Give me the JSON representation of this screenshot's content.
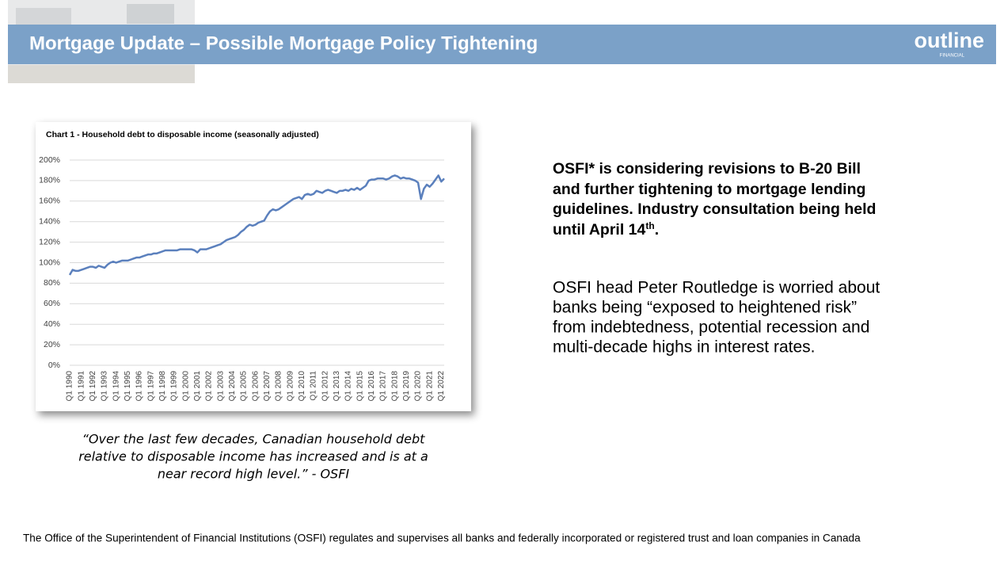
{
  "header": {
    "title": "Mortgage Update – Possible Mortgage Policy Tightening",
    "logo": "outline",
    "logo_sub": "FINANCIAL"
  },
  "chart_data": {
    "type": "line",
    "title": "Chart 1 - Household debt to disposable income (seasonally adjusted)",
    "categories": [
      "Q1 1990",
      null,
      null,
      null,
      "Q1 1991",
      null,
      null,
      null,
      "Q1 1992",
      null,
      null,
      null,
      "Q1 1993",
      null,
      null,
      null,
      "Q1 1994",
      null,
      null,
      null,
      "Q1 1995",
      null,
      null,
      null,
      "Q1 1996",
      null,
      null,
      null,
      "Q1 1997",
      null,
      null,
      null,
      "Q1 1998",
      null,
      null,
      null,
      "Q1 1999",
      null,
      null,
      null,
      "Q1 2000",
      null,
      null,
      null,
      "Q1 2001",
      null,
      null,
      null,
      "Q1 2002",
      null,
      null,
      null,
      "Q1 2003",
      null,
      null,
      null,
      "Q1 2004",
      null,
      null,
      null,
      "Q1 2005",
      null,
      null,
      null,
      "Q1 2006",
      null,
      null,
      null,
      "Q1 2007",
      null,
      null,
      null,
      "Q1 2008",
      null,
      null,
      null,
      "Q1 2009",
      null,
      null,
      null,
      "Q1 2010",
      null,
      null,
      null,
      "Q1 2011",
      null,
      null,
      null,
      "Q1 2012",
      null,
      null,
      null,
      "Q1 2013",
      null,
      null,
      null,
      "Q1 2014",
      null,
      null,
      null,
      "Q1 2015",
      null,
      null,
      null,
      "Q1 2016",
      null,
      null,
      null,
      "Q1 2017",
      null,
      null,
      null,
      "Q1 2018",
      null,
      null,
      null,
      "Q1 2019",
      null,
      null,
      null,
      "Q1 2020",
      null,
      null,
      null,
      "Q1 2021",
      null,
      null,
      null,
      "Q1 2022",
      null
    ],
    "values": [
      88,
      93,
      92,
      92,
      93,
      94,
      95,
      96,
      96,
      95,
      97,
      96,
      95,
      98,
      100,
      101,
      100,
      101,
      102,
      102,
      102,
      103,
      104,
      105,
      105,
      106,
      107,
      108,
      108,
      109,
      109,
      110,
      111,
      112,
      112,
      112,
      112,
      112,
      113,
      113,
      113,
      113,
      113,
      112,
      110,
      113,
      113,
      113,
      114,
      115,
      116,
      117,
      118,
      120,
      122,
      123,
      124,
      125,
      127,
      130,
      132,
      135,
      137,
      136,
      137,
      139,
      140,
      141,
      146,
      150,
      152,
      151,
      152,
      154,
      156,
      158,
      160,
      162,
      163,
      164,
      162,
      166,
      167,
      166,
      167,
      170,
      169,
      168,
      170,
      171,
      170,
      169,
      168,
      170,
      170,
      171,
      170,
      172,
      171,
      173,
      171,
      173,
      175,
      180,
      181,
      181,
      182,
      182,
      182,
      181,
      182,
      184,
      185,
      184,
      182,
      183,
      182,
      182,
      181,
      180,
      178,
      162,
      172,
      176,
      174,
      177,
      181,
      185,
      179,
      182
    ],
    "color": "#5b80bd",
    "ylim": [
      0,
      200
    ],
    "yticks": [
      {
        "value": 0,
        "label": "0%"
      },
      {
        "value": 20,
        "label": "20%"
      },
      {
        "value": 40,
        "label": "40%"
      },
      {
        "value": 60,
        "label": "60%"
      },
      {
        "value": 80,
        "label": "80%"
      },
      {
        "value": 100,
        "label": "100%"
      },
      {
        "value": 120,
        "label": "120%"
      },
      {
        "value": 140,
        "label": "140%"
      },
      {
        "value": 160,
        "label": "160%"
      },
      {
        "value": 180,
        "label": "180%"
      },
      {
        "value": 200,
        "label": "200%"
      }
    ],
    "grid": true
  },
  "quote": {
    "lines": [
      "“Over the last few decades, Canadian household debt",
      "relative to disposable income has increased and is at a",
      "near record high level.” - OSFI"
    ]
  },
  "point1": {
    "lines": [
      "OSFI* is considering revisions to B-20 Bill",
      "and further tightening to mortgage lending",
      "guidelines. Industry consultation being held",
      "until April 14"
    ],
    "sup": "th",
    "end": "."
  },
  "point2": {
    "lines": [
      "OSFI head Peter Routledge is worried about",
      "banks being “exposed to heightened risk”",
      "from indebtedness, potential recession and",
      "multi-decade highs in interest rates."
    ]
  },
  "footer": "The Office of the Superintendent of Financial Institutions (OSFI) regulates and supervises all banks and federally incorporated or registered trust and loan companies in Canada"
}
